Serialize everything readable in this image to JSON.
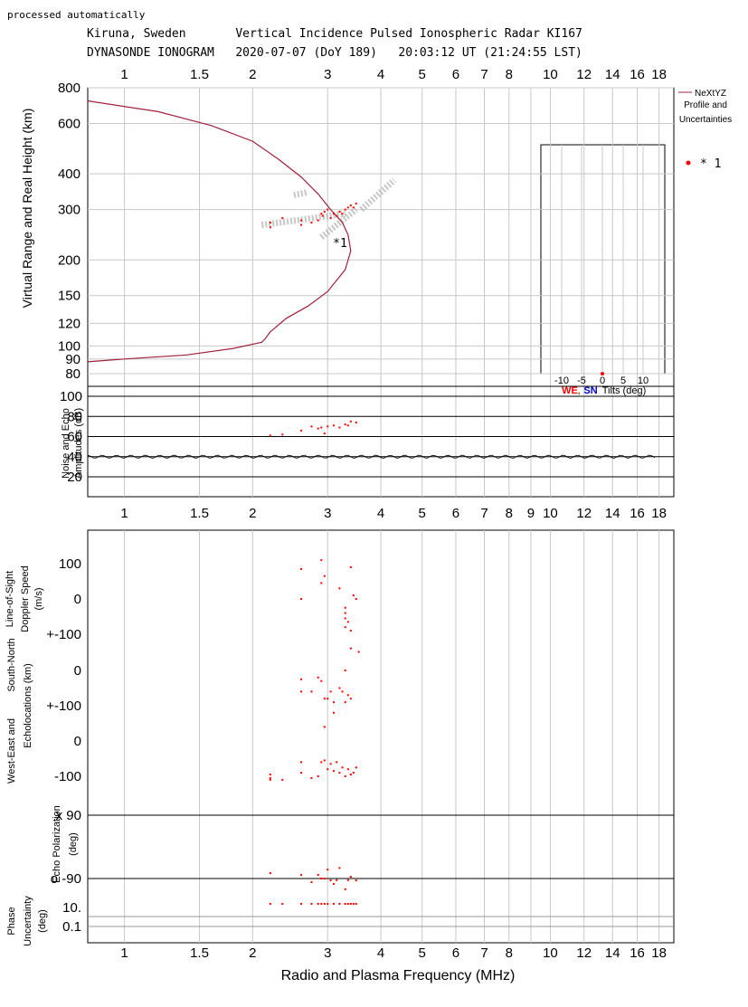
{
  "header": {
    "note": "processed automatically",
    "line1": "Kiruna, Sweden       Vertical Incidence Pulsed Ionospheric Radar KI167",
    "line2": "DYNASONDE IONOGRAM   2020-07-07 (DoY 189)   20:03:12 UT (21:24:55 LST)"
  },
  "axes": {
    "xlabel": "Radio and Plasma Frequency (MHz)",
    "x_ticks_top": [
      "1",
      "1.5",
      "2",
      "3",
      "4",
      "5",
      "6",
      "7",
      "8",
      "10",
      "12",
      "14",
      "16",
      "18"
    ],
    "x_ticks_mid": [
      "1",
      "1.5",
      "2",
      "3",
      "4",
      "5",
      "6",
      "7",
      "8",
      "9",
      "10",
      "12",
      "14",
      "16",
      "18"
    ],
    "x_ticks_bottom": [
      "1",
      "1.5",
      "2",
      "3",
      "4",
      "5",
      "6",
      "7",
      "8",
      "10",
      "12",
      "14",
      "16",
      "18"
    ],
    "height_label": "Virtual Range and Real Height (km)",
    "height_ticks": [
      "800",
      "600",
      "400",
      "300",
      "200",
      "150",
      "120",
      "100",
      "90",
      "80"
    ],
    "amp_label_1": "Noise and Echo",
    "amp_label_2": "Amplitudes (dB)",
    "amp_ticks": [
      "100",
      "80",
      "60",
      "40",
      "20"
    ],
    "doppler_label_1": "Line-of-Sight",
    "doppler_label_2": "Doppler Speed",
    "doppler_label_3": "(m/s)",
    "doppler_ticks": [
      "100",
      "0",
      "+-100"
    ],
    "sn_label": "South-North",
    "sn_ticks": [
      "0",
      "+-100"
    ],
    "echo_label_1": "Echolocations (km)",
    "we_label": "West-East     and",
    "we_ticks": [
      "0",
      "-100"
    ],
    "pol_label_1": "Echo Polarization",
    "pol_label_2": "(deg)",
    "pol_x": "x  90",
    "pol_o": "o -90",
    "phase_label_1": "Phase",
    "phase_label_2": "Uncertainty",
    "phase_label_3": "(deg)",
    "phase_ticks": [
      "10.",
      "0.1"
    ]
  },
  "legend": {
    "profile_1": "NeXtYZ",
    "profile_2": "Profile and",
    "profile_3": "Uncertainties",
    "marker": "* 1",
    "trace_label": "*1"
  },
  "tilts": {
    "ticks": [
      "-10",
      "-5",
      "0",
      "5",
      "10"
    ],
    "we": "WE",
    "comma": ",",
    "sn": "SN",
    "label": "Tilts (deg)"
  },
  "colors": {
    "profile": "#a0203a",
    "echo": "#ff0000",
    "we": "#ff0000",
    "sn": "#0000cc"
  },
  "chart_data": {
    "type": "scatter",
    "x_scale": "log",
    "xlim_mhz": [
      0.82,
      19.5
    ],
    "profile": {
      "f_mhz": [
        0.82,
        1.0,
        1.4,
        1.8,
        2.1,
        2.14,
        2.2,
        2.4,
        2.7,
        3.0,
        3.3,
        3.4,
        3.35,
        3.25,
        3.05,
        2.85,
        2.6,
        2.3,
        2.0,
        1.6,
        1.2,
        0.82
      ],
      "h_km": [
        88,
        90,
        93,
        98,
        103,
        106,
        112,
        125,
        138,
        155,
        185,
        215,
        245,
        270,
        300,
        340,
        390,
        450,
        520,
        590,
        660,
        720
      ]
    },
    "echo_points": {
      "f_mhz": [
        2.2,
        2.2,
        2.35,
        2.6,
        2.6,
        2.75,
        2.85,
        2.9,
        2.92,
        2.95,
        3.0,
        3.05,
        3.1,
        3.15,
        3.2,
        3.25,
        3.3,
        3.35,
        3.4,
        3.45,
        3.5
      ],
      "h_km": [
        270,
        260,
        280,
        275,
        265,
        270,
        275,
        290,
        285,
        295,
        300,
        280,
        290,
        285,
        295,
        290,
        300,
        305,
        310,
        305,
        315
      ]
    },
    "amp_points": {
      "f_mhz": [
        2.2,
        2.35,
        2.6,
        2.75,
        2.85,
        2.9,
        2.95,
        3.0,
        3.1,
        3.2,
        3.3,
        3.35,
        3.4,
        3.5
      ],
      "db": [
        61,
        62,
        66,
        70,
        68,
        69,
        63,
        70,
        71,
        69,
        72,
        71,
        75,
        74
      ]
    },
    "doppler_ms": {
      "f_mhz": [
        2.6,
        2.6,
        2.9,
        2.9,
        2.95,
        3.2,
        3.3,
        3.3,
        3.4,
        3.45,
        3.5,
        3.3,
        3.35,
        3.3,
        3.4,
        3.55,
        3.4
      ],
      "v": [
        85,
        0,
        110,
        45,
        65,
        30,
        -25,
        -40,
        90,
        10,
        0,
        -55,
        -65,
        -80,
        -90,
        -150,
        -140
      ]
    },
    "sn_km": {
      "f_mhz": [
        2.6,
        2.6,
        2.75,
        2.85,
        2.9,
        2.95,
        3.0,
        3.05,
        3.1,
        3.2,
        3.25,
        3.3,
        3.35,
        3.4,
        2.95,
        3.1,
        3.3
      ],
      "km": [
        -25,
        -60,
        -60,
        -20,
        -30,
        -80,
        -80,
        -60,
        -90,
        -50,
        -60,
        -90,
        -70,
        -80,
        -160,
        -120,
        0
      ]
    },
    "we_km": {
      "f_mhz": [
        2.2,
        2.2,
        2.2,
        2.35,
        2.6,
        2.6,
        2.75,
        2.85,
        2.9,
        2.95,
        3.0,
        3.05,
        3.1,
        3.15,
        3.2,
        3.25,
        3.3,
        3.35,
        3.4,
        3.45,
        3.5
      ],
      "km": [
        -95,
        -105,
        -110,
        -110,
        -60,
        -90,
        -105,
        -100,
        -60,
        -55,
        -80,
        -65,
        -85,
        -60,
        -90,
        -75,
        -100,
        -80,
        -95,
        -90,
        -75
      ]
    },
    "polarization_deg": {
      "f_mhz": [
        2.2,
        2.6,
        2.75,
        2.85,
        2.9,
        2.95,
        3.0,
        3.05,
        3.1,
        3.15,
        3.2,
        3.3,
        3.35,
        3.4,
        3.5
      ],
      "deg": [
        -90,
        -80,
        -85,
        -95,
        -90,
        -75,
        -80,
        -95,
        -90,
        -110,
        -60,
        -105,
        -110,
        -85,
        -80
      ]
    },
    "phase_deg": {
      "f_mhz": [
        2.2,
        2.35,
        2.6,
        2.75,
        2.85,
        2.9,
        2.95,
        3.0,
        3.1,
        3.2,
        3.3,
        3.35,
        3.4,
        3.45,
        3.5
      ],
      "deg": [
        10,
        10,
        10,
        10,
        10,
        10,
        10,
        10,
        10,
        10,
        10,
        10,
        10,
        10,
        10
      ]
    }
  }
}
